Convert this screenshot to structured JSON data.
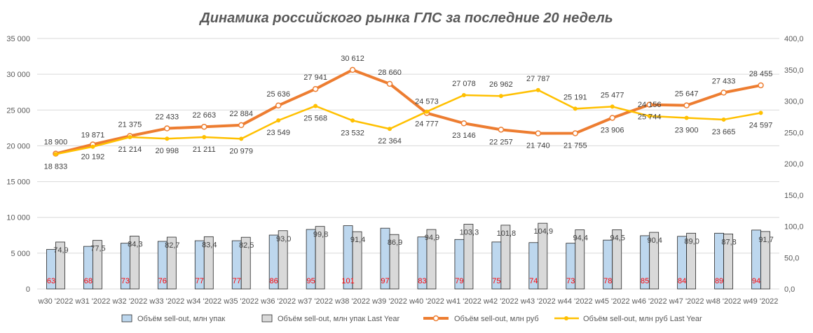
{
  "chart_data": {
    "type": "bar",
    "title": "Динамика российского рынка ГЛС за последние 20 недель",
    "categories": [
      "w30 '2022",
      "w31 '2022",
      "w32 '2022",
      "w33 '2022",
      "w34 '2022",
      "w35 '2022",
      "w36 '2022",
      "w37 '2022",
      "w38 '2022",
      "w39 '2022",
      "w40 '2022",
      "w41 '2022",
      "w42 '2022",
      "w43 '2022",
      "w44 '2022",
      "w45 '2022",
      "w46 '2022",
      "w47 '2022",
      "w48 '2022",
      "w49 '2022"
    ],
    "y_left": {
      "range": [
        0,
        35000
      ],
      "tick_labels": [
        "0",
        "5 000",
        "10 000",
        "15 000",
        "20 000",
        "25 000",
        "30 000",
        "35 000"
      ]
    },
    "y_right": {
      "range": [
        0,
        400
      ],
      "tick_labels": [
        "0,0",
        "50,0",
        "100,0",
        "150,0",
        "200,0",
        "250,0",
        "300,0",
        "350,0",
        "400,0"
      ]
    },
    "grid": true,
    "legend": "bottom",
    "series": [
      {
        "name": "Объём sell-out, млн упак",
        "type": "bar",
        "axis": "right",
        "color": "#bdd7ee",
        "label_color": "#ff0000",
        "values": [
          63,
          68,
          73,
          76,
          77,
          77,
          86,
          95,
          101,
          97,
          83,
          79,
          75,
          74,
          73,
          78,
          85,
          84,
          89,
          94
        ],
        "labels": [
          "63",
          "68",
          "73",
          "76",
          "77",
          "77",
          "86",
          "95",
          "101",
          "97",
          "83",
          "79",
          "75",
          "74",
          "73",
          "78",
          "85",
          "84",
          "89",
          "94"
        ]
      },
      {
        "name": "Объём sell-out, млн упак Last Year",
        "type": "bar",
        "axis": "right",
        "color": "#d9d9d9",
        "values": [
          74.9,
          77.5,
          84.3,
          82.7,
          83.4,
          82.5,
          93.0,
          99.8,
          91.4,
          86.9,
          94.9,
          103.3,
          101.8,
          104.9,
          94.4,
          94.5,
          90.4,
          89.0,
          87.8,
          91.7
        ],
        "labels": [
          "74,9",
          "77,5",
          "84,3",
          "82,7",
          "83,4",
          "82,5",
          "93,0",
          "99,8",
          "91,4",
          "86,9",
          "94,9",
          "103,3",
          "101,8",
          "104,9",
          "94,4",
          "94,5",
          "90,4",
          "89,0",
          "87,8",
          "91,7"
        ]
      },
      {
        "name": "Объём sell-out, млн руб",
        "type": "line",
        "axis": "left",
        "color": "#ed7d31",
        "values": [
          18900,
          20192,
          21375,
          22433,
          22663,
          22884,
          25636,
          27941,
          30612,
          28660,
          24573,
          23146,
          22257,
          21740,
          21755,
          23906,
          25744,
          25647,
          27433,
          28455
        ],
        "labels": [
          "18 900",
          "20 192",
          "21 375",
          "22 433",
          "22 663",
          "22 884",
          "25 636",
          "27 941",
          "30 612",
          "28 660",
          "24 573",
          "23 146",
          "22 257",
          "21 740",
          "21 755",
          "23 906",
          "25 744",
          "25 647",
          "27 433",
          "28 455"
        ]
      },
      {
        "name": "Объём sell-out, млн руб Last Year",
        "type": "line",
        "axis": "left",
        "color": "#ffc000",
        "values": [
          18833,
          19871,
          21214,
          20998,
          21211,
          20979,
          23549,
          25568,
          23532,
          22364,
          24777,
          27078,
          26962,
          27787,
          25191,
          25477,
          24156,
          23900,
          23665,
          24597
        ],
        "labels": [
          "18 833",
          "19 871",
          "21 214",
          "20 998",
          "21 211",
          "20 979",
          "23 549",
          "25 568",
          "23 532",
          "22 364",
          "24 777",
          "27 078",
          "26 962",
          "27 787",
          "25 191",
          "25 477",
          "24 156",
          "23 900",
          "23 665",
          "24 597"
        ]
      }
    ]
  }
}
